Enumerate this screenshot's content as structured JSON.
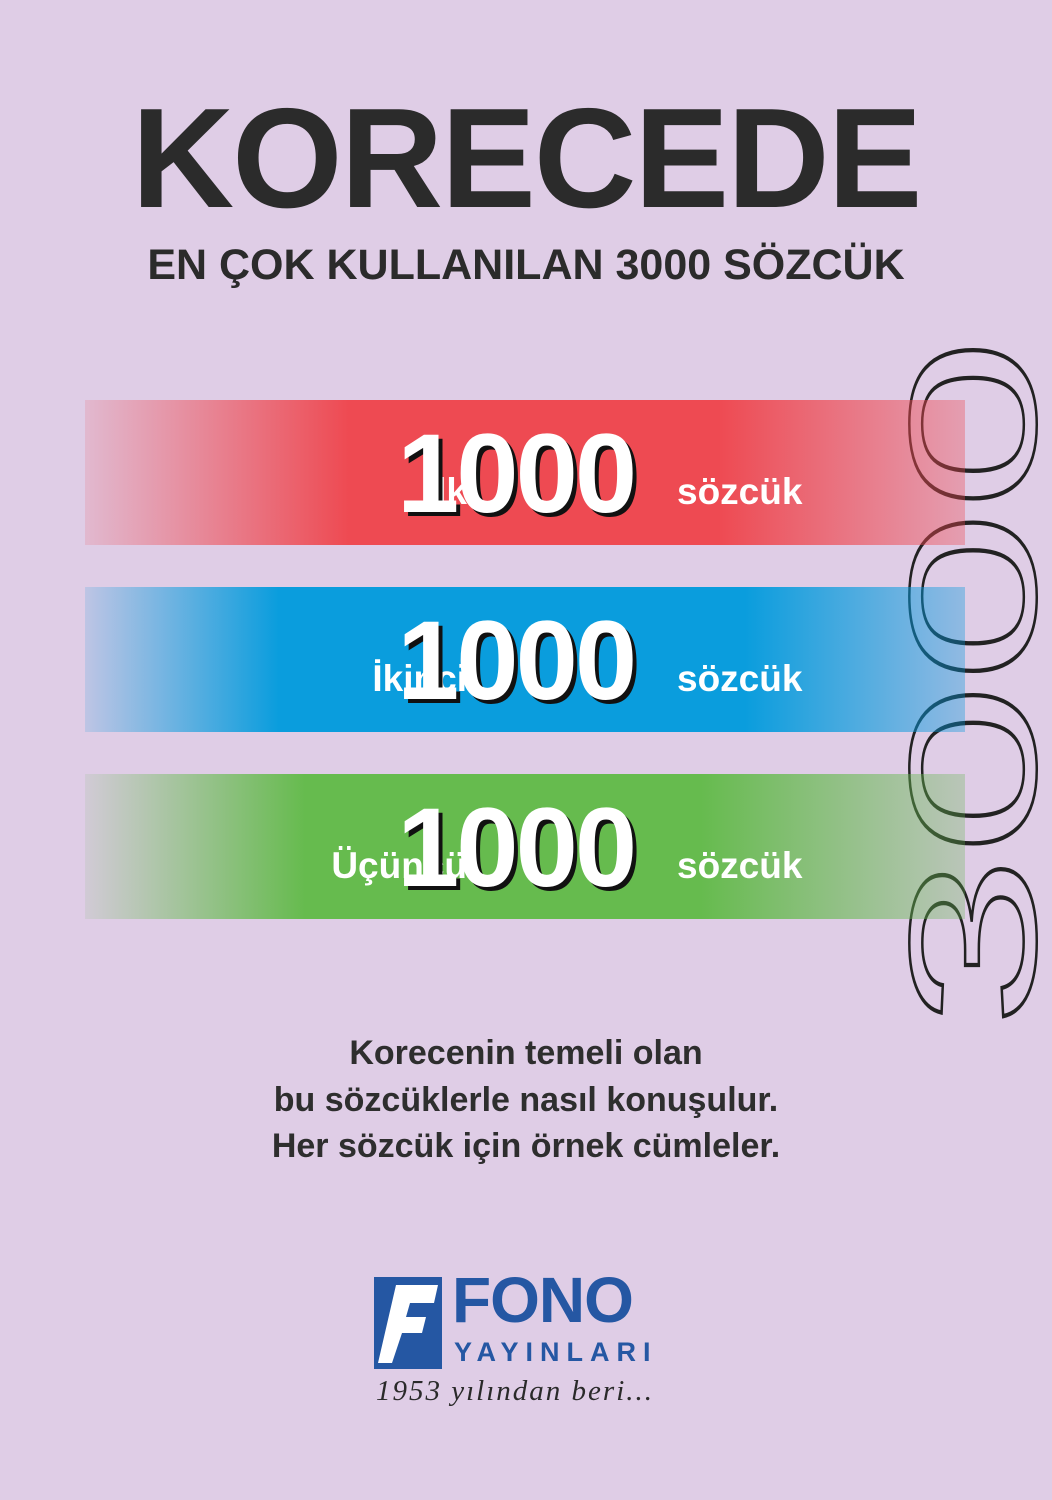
{
  "cover": {
    "title": "KORECEDE",
    "subtitle": "EN ÇOK KULLANILAN 3000 SÖZCÜK",
    "side_number": "3000",
    "bands": [
      {
        "prefix": "İlk",
        "number": "1000",
        "suffix": "sözcük",
        "color": "#ee4a52"
      },
      {
        "prefix": "İkinci",
        "number": "1000",
        "suffix": "sözcük",
        "color": "#0a9ddd"
      },
      {
        "prefix": "Üçüncü",
        "number": "1000",
        "suffix": "sözcük",
        "color": "#66bb4e"
      }
    ],
    "description": [
      "Korecenin temeli olan",
      "bu sözcüklerle nasıl konuşulur.",
      "Her sözcük için örnek cümleler."
    ],
    "background": "#dfcde6"
  },
  "publisher": {
    "name": "FONO",
    "line2": "YAYINLARI",
    "tagline": "1953 yılından beri...",
    "color": "#2557a3"
  }
}
